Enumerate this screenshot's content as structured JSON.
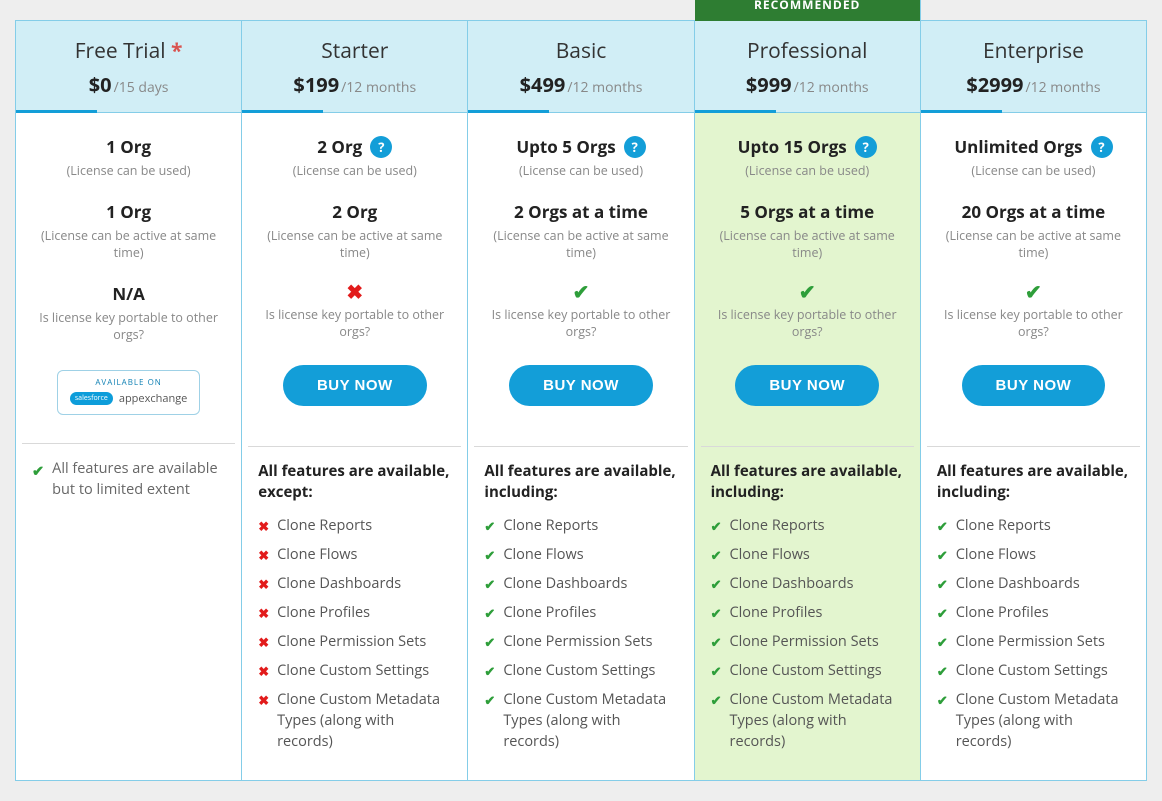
{
  "colors": {
    "page_bg": "#eeeeee",
    "border": "#84cde8",
    "header_bg": "#d1eef6",
    "accent": "#139ed8",
    "recommended_bg": "#e3f5cf",
    "recommended_banner": "#2e7d32",
    "check": "#2e9e3a",
    "cross": "#e21b1b",
    "text_muted": "#888888"
  },
  "recommended_label": "RECOMMENDED",
  "buy_now_label": "BUY NOW",
  "license_used_note": "(License can be used)",
  "license_active_note": "(License can be active at same time)",
  "portable_question": "Is license key portable to other orgs?",
  "feature_items": [
    "Clone Reports",
    "Clone Flows",
    "Clone Dashboards",
    "Clone Profiles",
    "Clone Permission Sets",
    "Clone Custom Settings",
    "Clone Custom Metadata Types (along with records)"
  ],
  "features_heading_except": "All features are available, except:",
  "features_heading_including": "All features are available, including:",
  "trial_note": "All features are available but to limited extent",
  "appexchange": {
    "top": "AVAILABLE ON",
    "brand": "salesforce",
    "label": "appexchange"
  },
  "plans": [
    {
      "id": "free",
      "name": "Free Trial",
      "asterisk": true,
      "price": "$0",
      "period": "/15 days",
      "org_used": "1 Org",
      "has_help_used": false,
      "org_active": "1 Org",
      "portable": "na",
      "portable_text": "N/A",
      "cta": "appexchange",
      "features_mode": "trial",
      "recommended": false
    },
    {
      "id": "starter",
      "name": "Starter",
      "asterisk": false,
      "price": "$199",
      "period": "/12 months",
      "org_used": "2 Org",
      "has_help_used": true,
      "org_active": "2 Org",
      "portable": "no",
      "cta": "buy",
      "features_mode": "except",
      "recommended": false
    },
    {
      "id": "basic",
      "name": "Basic",
      "asterisk": false,
      "price": "$499",
      "period": "/12 months",
      "org_used": "Upto 5 Orgs",
      "has_help_used": true,
      "org_active": "2 Orgs at a time",
      "portable": "yes",
      "cta": "buy",
      "features_mode": "including",
      "recommended": false
    },
    {
      "id": "professional",
      "name": "Professional",
      "asterisk": false,
      "price": "$999",
      "period": "/12 months",
      "org_used": "Upto 15 Orgs",
      "has_help_used": true,
      "org_active": "5 Orgs at a time",
      "portable": "yes",
      "cta": "buy",
      "features_mode": "including",
      "recommended": true
    },
    {
      "id": "enterprise",
      "name": "Enterprise",
      "asterisk": false,
      "price": "$2999",
      "period": "/12 months",
      "org_used": "Unlimited Orgs",
      "has_help_used": true,
      "org_active": "20 Orgs at a time",
      "portable": "yes",
      "cta": "buy",
      "features_mode": "including",
      "recommended": false
    }
  ]
}
